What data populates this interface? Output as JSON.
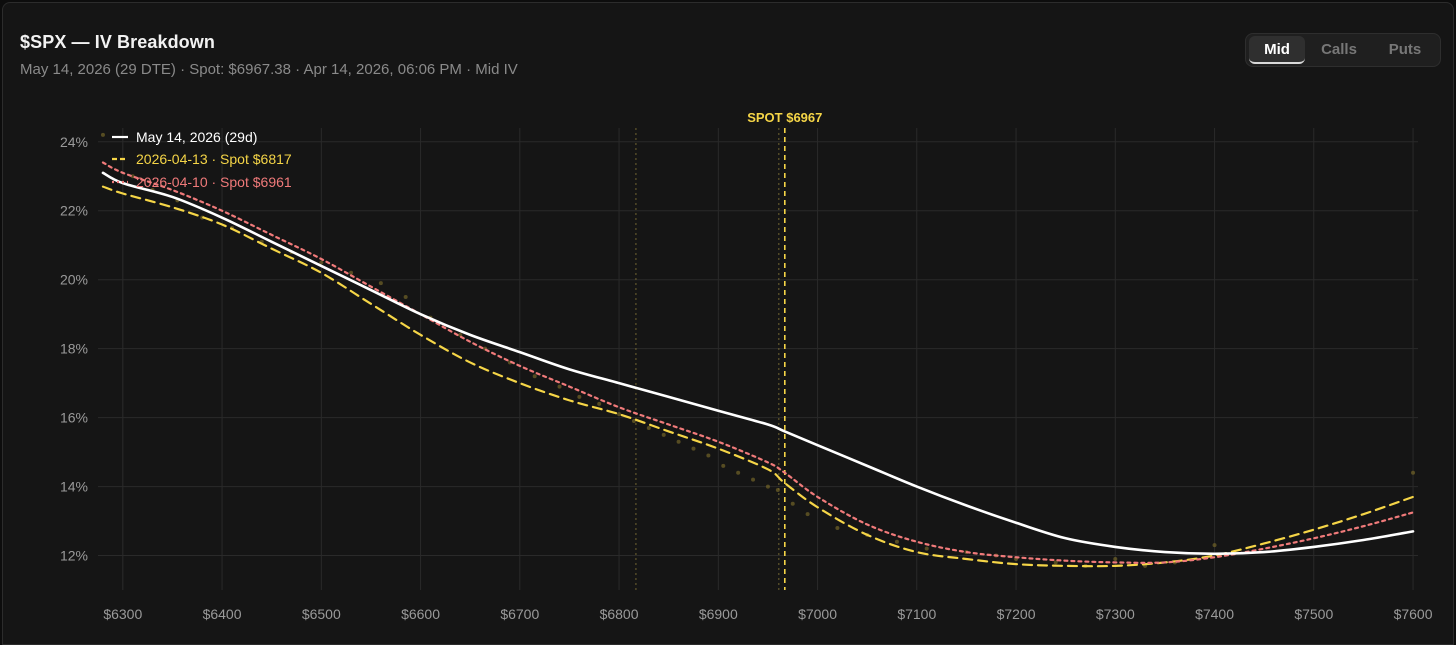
{
  "header": {
    "title": "$SPX — IV Breakdown",
    "subtitle": "May 14, 2026 (29 DTE) · Spot: $6967.38 · Apr 14, 2026, 06:06 PM · Mid IV"
  },
  "toggle": {
    "options": [
      "Mid",
      "Calls",
      "Puts"
    ],
    "selected": "Mid"
  },
  "colors": {
    "current": "#ffffff",
    "prior1": "#f5d547",
    "prior2": "#f07a7a",
    "spot": "#f5d547",
    "grid": "#2a2a2a",
    "axis_text": "#9a9a9a"
  },
  "chart_data": {
    "type": "line",
    "title": "",
    "xlabel": "",
    "ylabel": "",
    "xlim": [
      6275,
      7605
    ],
    "ylim": [
      11.0,
      24.4
    ],
    "x_ticks": [
      6300,
      6400,
      6500,
      6600,
      6700,
      6800,
      6900,
      7000,
      7100,
      7200,
      7300,
      7400,
      7500,
      7600
    ],
    "x_tick_labels": [
      "$6300",
      "$6400",
      "$6500",
      "$6600",
      "$6700",
      "$6800",
      "$6900",
      "$7000",
      "$7100",
      "$7200",
      "$7300",
      "$7400",
      "$7500",
      "$7600"
    ],
    "y_ticks": [
      12,
      14,
      16,
      18,
      20,
      22,
      24
    ],
    "y_tick_labels": [
      "12%",
      "14%",
      "16%",
      "18%",
      "20%",
      "22%",
      "24%"
    ],
    "grid": true,
    "legend_position": "top-left",
    "series": [
      {
        "name": "May 14, 2026 (29d)",
        "style": "solid",
        "color": "#ffffff",
        "x": [
          6280,
          6300,
          6350,
          6400,
          6450,
          6500,
          6550,
          6600,
          6650,
          6700,
          6750,
          6800,
          6850,
          6900,
          6950,
          6967,
          7000,
          7050,
          7100,
          7150,
          7200,
          7250,
          7300,
          7350,
          7400,
          7450,
          7500,
          7550,
          7600
        ],
        "y": [
          23.1,
          22.8,
          22.4,
          21.8,
          21.1,
          20.4,
          19.7,
          19.0,
          18.4,
          17.9,
          17.4,
          17.0,
          16.6,
          16.2,
          15.8,
          15.6,
          15.2,
          14.6,
          14.0,
          13.45,
          12.95,
          12.5,
          12.25,
          12.1,
          12.05,
          12.1,
          12.25,
          12.45,
          12.7
        ]
      },
      {
        "name": "2026-04-13 · Spot $6817",
        "style": "dashed",
        "color": "#f5d547",
        "x": [
          6280,
          6300,
          6350,
          6400,
          6450,
          6500,
          6550,
          6600,
          6650,
          6700,
          6750,
          6800,
          6850,
          6900,
          6950,
          6967,
          7000,
          7050,
          7100,
          7150,
          7200,
          7250,
          7300,
          7350,
          7400,
          7450,
          7500,
          7550,
          7600
        ],
        "y": [
          22.7,
          22.5,
          22.1,
          21.6,
          20.9,
          20.2,
          19.3,
          18.4,
          17.6,
          17.0,
          16.5,
          16.1,
          15.6,
          15.1,
          14.5,
          14.1,
          13.4,
          12.6,
          12.1,
          11.9,
          11.75,
          11.7,
          11.7,
          11.8,
          12.0,
          12.35,
          12.75,
          13.2,
          13.7
        ]
      },
      {
        "name": "2026-04-10 · Spot $6961",
        "style": "dotted",
        "color": "#f07a7a",
        "x": [
          6280,
          6300,
          6350,
          6400,
          6450,
          6500,
          6550,
          6600,
          6650,
          6700,
          6750,
          6800,
          6850,
          6900,
          6950,
          6967,
          7000,
          7050,
          7100,
          7150,
          7200,
          7250,
          7300,
          7350,
          7400,
          7450,
          7500,
          7550,
          7600
        ],
        "y": [
          23.4,
          23.1,
          22.6,
          22.0,
          21.3,
          20.6,
          19.8,
          19.0,
          18.2,
          17.5,
          16.9,
          16.3,
          15.8,
          15.3,
          14.7,
          14.4,
          13.7,
          12.9,
          12.4,
          12.1,
          11.95,
          11.85,
          11.8,
          11.8,
          11.95,
          12.2,
          12.5,
          12.85,
          13.25
        ]
      }
    ],
    "scatter_points": {
      "x": [
        6280,
        6310,
        6330,
        6355,
        6380,
        6410,
        6440,
        6470,
        6500,
        6530,
        6560,
        6585,
        6610,
        6640,
        6665,
        6690,
        6715,
        6740,
        6760,
        6780,
        6800,
        6815,
        6830,
        6845,
        6860,
        6875,
        6890,
        6905,
        6920,
        6935,
        6950,
        6960,
        6975,
        6990,
        7020,
        7050,
        7080,
        7110,
        7150,
        7180,
        7200,
        7240,
        7270,
        7300,
        7330,
        7360,
        7400,
        7600
      ],
      "y": [
        24.2,
        23.0,
        22.6,
        22.3,
        21.8,
        21.5,
        21.1,
        20.8,
        20.5,
        20.2,
        19.9,
        19.5,
        18.9,
        18.4,
        18.0,
        17.6,
        17.2,
        16.9,
        16.6,
        16.4,
        16.1,
        15.9,
        15.7,
        15.5,
        15.3,
        15.1,
        14.9,
        14.6,
        14.4,
        14.2,
        14.0,
        13.9,
        13.5,
        13.2,
        12.8,
        12.6,
        12.4,
        12.2,
        12.1,
        12.0,
        11.9,
        11.8,
        11.7,
        11.9,
        11.7,
        11.8,
        12.3,
        14.4
      ]
    },
    "vertical_lines": [
      {
        "x": 6817,
        "style": "dotted",
        "label": ""
      },
      {
        "x": 6961,
        "style": "dotted",
        "label": ""
      },
      {
        "x": 6967,
        "style": "dashed",
        "label": "SPOT $6967"
      }
    ]
  }
}
